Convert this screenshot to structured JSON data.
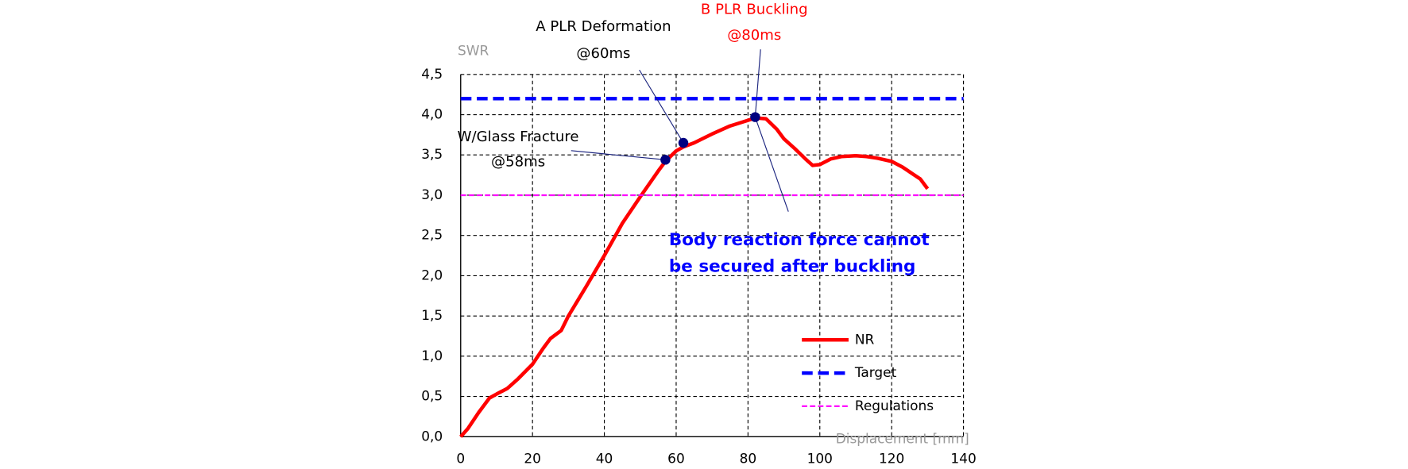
{
  "chart_data": {
    "type": "line",
    "y_label": "SWR",
    "x_label": "Displacement  [mm]",
    "xlim": [
      0,
      140
    ],
    "ylim": [
      0,
      4.5
    ],
    "xticks": [
      0,
      20,
      40,
      60,
      80,
      100,
      120,
      140
    ],
    "yticks": [
      {
        "value": 0,
        "label": "0,0"
      },
      {
        "value": 0.5,
        "label": "0,5"
      },
      {
        "value": 1,
        "label": "1,0"
      },
      {
        "value": 1.5,
        "label": "1,5"
      },
      {
        "value": 2,
        "label": "2,0"
      },
      {
        "value": 2.5,
        "label": "2,5"
      },
      {
        "value": 3,
        "label": "3,0"
      },
      {
        "value": 3.5,
        "label": "3,5"
      },
      {
        "value": 4,
        "label": "4,0"
      },
      {
        "value": 4.5,
        "label": "4,5"
      }
    ],
    "grid": true,
    "legend": "lower-right",
    "series": [
      {
        "name": "NR",
        "color": "#ff0000",
        "style": "solid",
        "x": [
          0,
          2,
          5,
          8,
          10,
          13,
          16,
          20,
          23,
          25,
          28,
          30,
          35,
          40,
          45,
          50,
          55,
          57,
          60,
          62,
          65,
          70,
          75,
          80,
          82,
          85,
          88,
          90,
          93,
          96,
          98,
          100,
          103,
          106,
          110,
          113,
          116,
          120,
          123,
          126,
          128,
          130
        ],
        "values": [
          0,
          0.1,
          0.3,
          0.48,
          0.53,
          0.6,
          0.72,
          0.9,
          1.1,
          1.22,
          1.32,
          1.5,
          1.87,
          2.25,
          2.65,
          2.98,
          3.3,
          3.42,
          3.55,
          3.6,
          3.65,
          3.76,
          3.86,
          3.93,
          3.96,
          3.95,
          3.82,
          3.7,
          3.58,
          3.45,
          3.37,
          3.38,
          3.45,
          3.48,
          3.49,
          3.48,
          3.46,
          3.42,
          3.35,
          3.26,
          3.2,
          3.08
        ]
      },
      {
        "name": "Target",
        "color": "#0000ff",
        "style": "dashed",
        "x": [
          0,
          140
        ],
        "values": [
          4.2,
          4.2
        ]
      },
      {
        "name": "Regulations",
        "color": "#ff00ff",
        "style": "fine-dashed",
        "x": [
          0,
          140
        ],
        "values": [
          3,
          3
        ]
      }
    ],
    "annotations": [
      {
        "text": [
          "W/Glass Fracture",
          "@58ms"
        ],
        "x": 57,
        "y": 3.44,
        "color": "#000000"
      },
      {
        "text": [
          "A PLR Deformation",
          "@60ms"
        ],
        "x": 62,
        "y": 3.65,
        "color": "#000000"
      },
      {
        "text": [
          "B PLR Buckling",
          "@80ms"
        ],
        "x": 82,
        "y": 3.97,
        "color": "#ff0000"
      }
    ],
    "note": {
      "text": [
        "Body reaction force cannot",
        "be secured after buckling"
      ],
      "color": "#0000ff"
    },
    "marker_color": "#000080"
  }
}
